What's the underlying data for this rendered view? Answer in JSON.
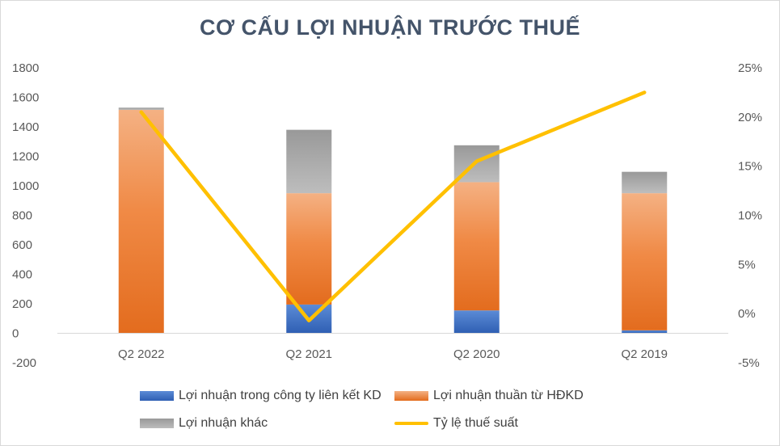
{
  "chart_data": {
    "type": "bar",
    "stacked": true,
    "title": "CƠ CẤU LỢI NHUẬN TRƯỚC THUẾ",
    "categories": [
      "Q2 2022",
      "Q2 2021",
      "Q2 2020",
      "Q2 2019"
    ],
    "series": [
      {
        "name": "Lợi nhuận trong công ty liên kết KD",
        "type": "bar",
        "axis": "left",
        "values": [
          0,
          195,
          155,
          20
        ]
      },
      {
        "name": "Lợi nhuận thuần từ HĐKD",
        "type": "bar",
        "axis": "left",
        "values": [
          1515,
          755,
          870,
          930
        ]
      },
      {
        "name": "Lợi nhuận khác",
        "type": "bar",
        "axis": "left",
        "values": [
          15,
          430,
          250,
          145
        ]
      },
      {
        "name": "Tỷ lệ thuế suất",
        "type": "line",
        "axis": "right",
        "values": [
          20.5,
          -0.7,
          15.5,
          22.5
        ]
      }
    ],
    "y_left": {
      "min": -200,
      "max": 1800,
      "step": 200,
      "ticks": [
        "-200",
        "0",
        "200",
        "400",
        "600",
        "800",
        "1000",
        "1200",
        "1400",
        "1600",
        "1800"
      ]
    },
    "y_right": {
      "min": -5,
      "max": 25,
      "step": 5,
      "ticks": [
        "-5%",
        "0%",
        "5%",
        "10%",
        "15%",
        "20%",
        "25%"
      ]
    },
    "legend_position": "bottom",
    "grid": false,
    "colors": {
      "associates": "#4472c4",
      "operating": "#ed7d31",
      "other": "#a5a5a5",
      "tax_rate": "#ffc000",
      "axis": "#d9d9d9",
      "title": "#44546a"
    }
  }
}
